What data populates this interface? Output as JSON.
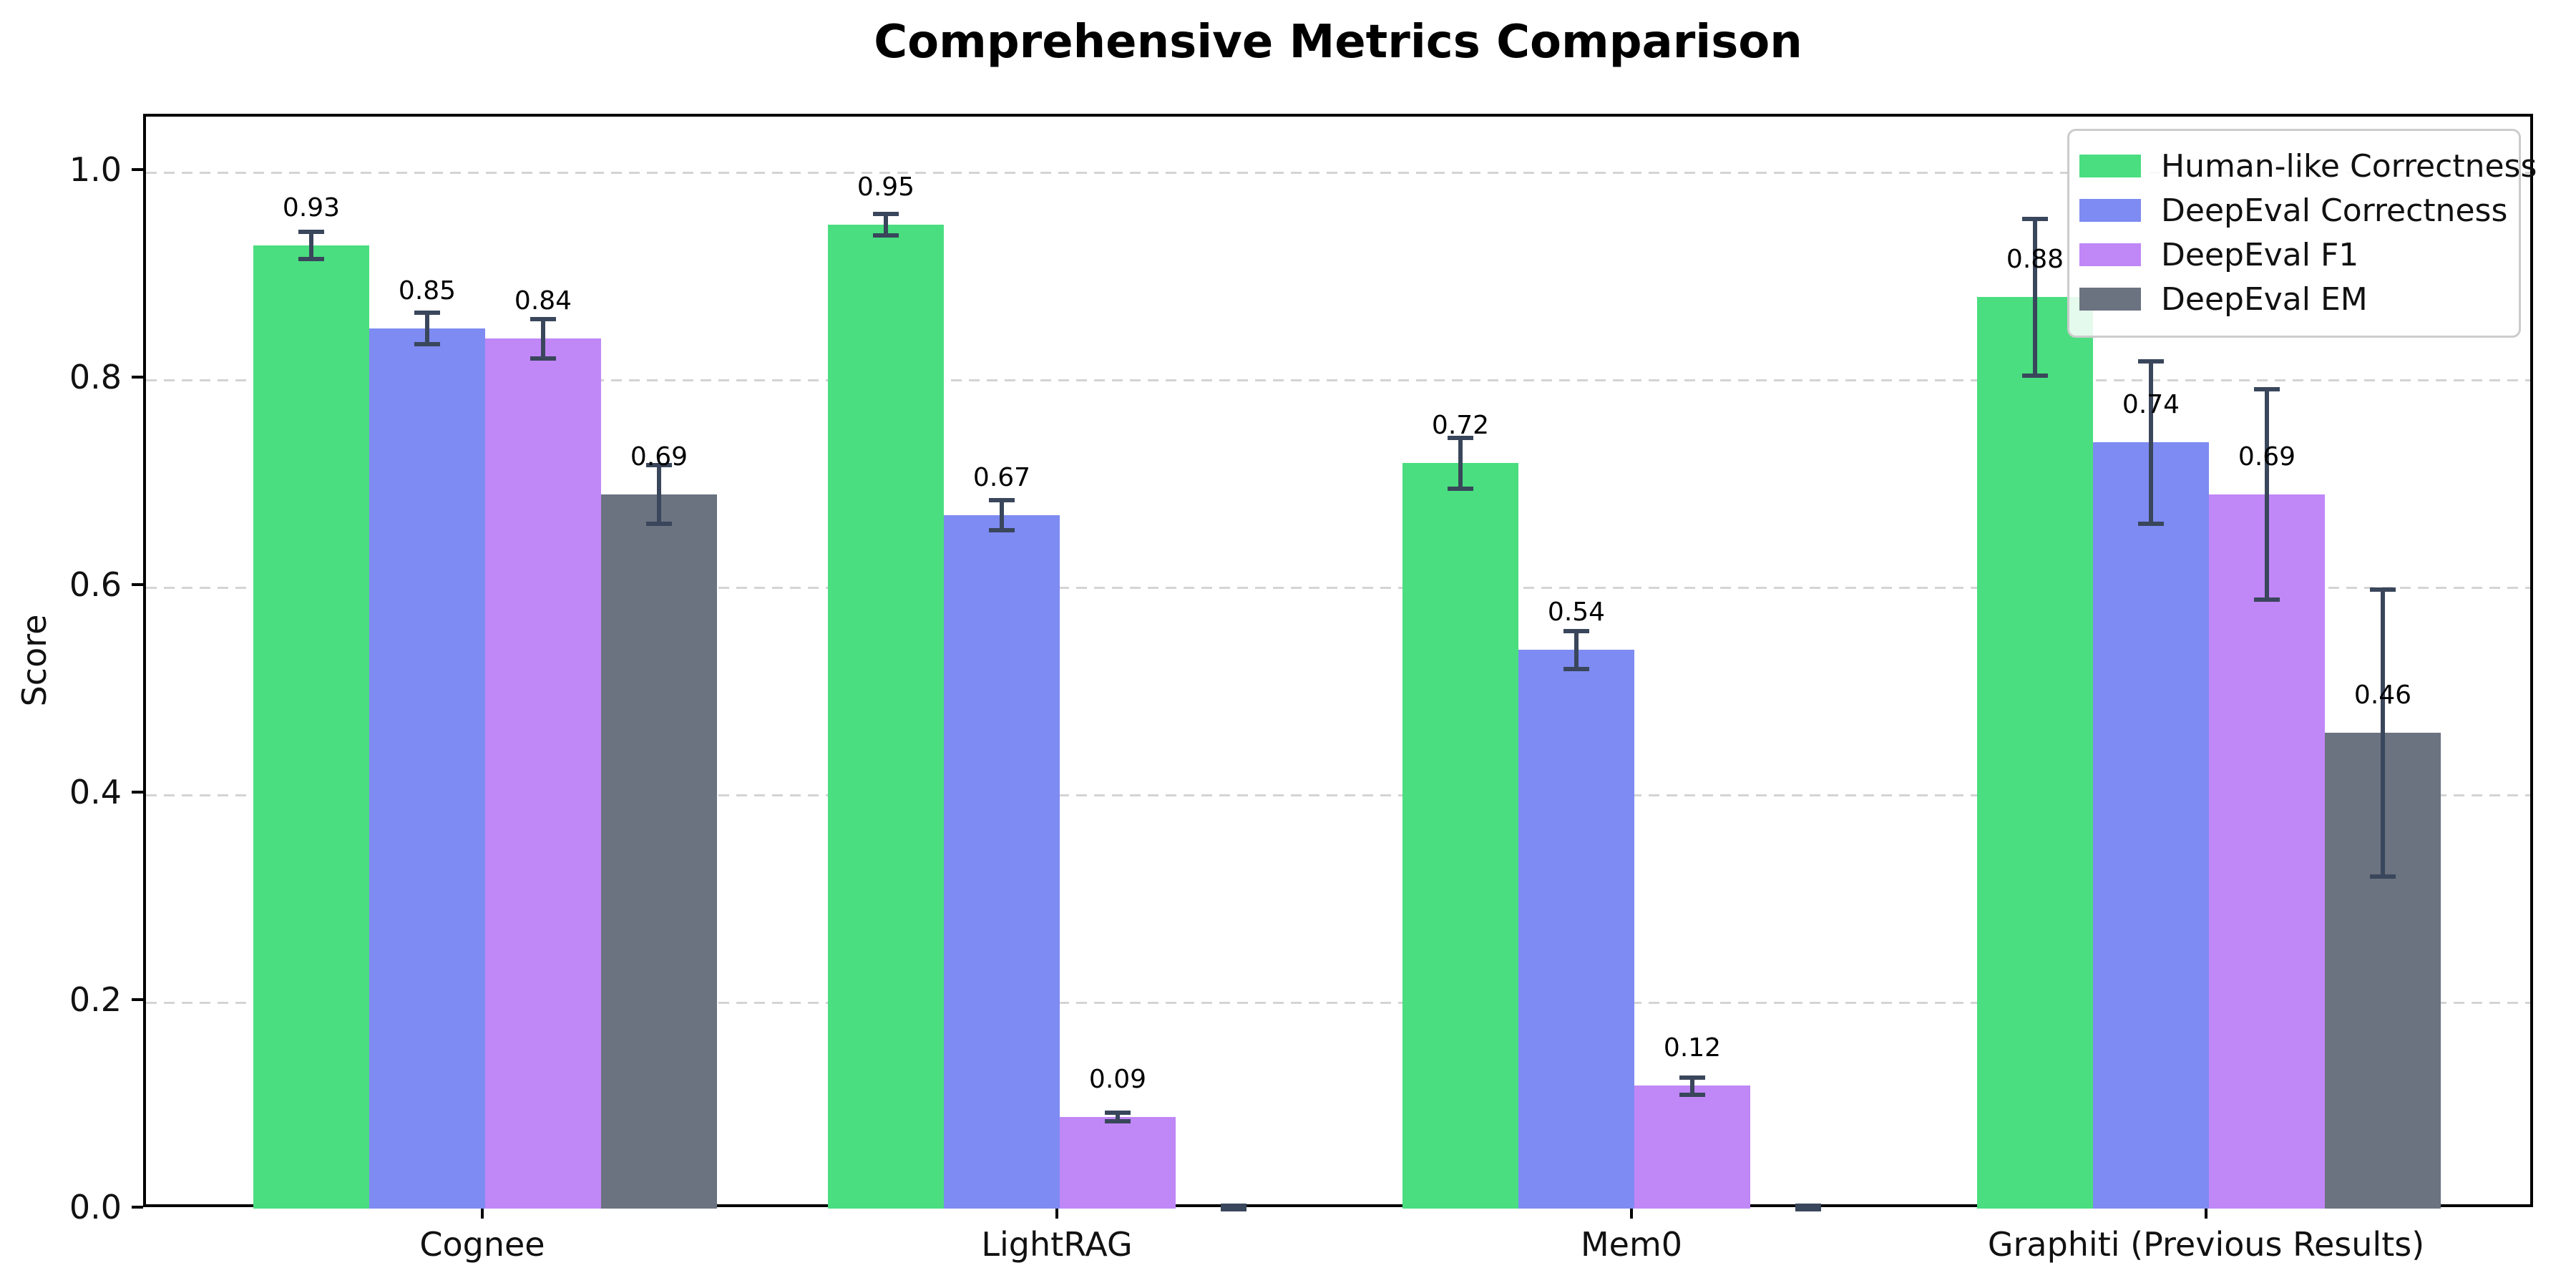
{
  "chart_data": {
    "type": "bar",
    "title": "Comprehensive Metrics Comparison",
    "ylabel": "Score",
    "xlabel": "",
    "categories": [
      "Cognee",
      "LightRAG",
      "Mem0",
      "Graphiti (Previous Results)"
    ],
    "series": [
      {
        "name": "Human-like Correctness",
        "color": "#4ade80",
        "values": [
          0.93,
          0.95,
          0.72,
          0.88
        ],
        "errors": [
          0.015,
          0.012,
          0.026,
          0.077
        ],
        "labels": [
          "0.93",
          "0.95",
          "0.72",
          "0.88"
        ]
      },
      {
        "name": "DeepEval Correctness",
        "color": "#7e8bf2",
        "values": [
          0.85,
          0.67,
          0.54,
          0.74
        ],
        "errors": [
          0.017,
          0.016,
          0.02,
          0.08
        ],
        "labels": [
          "0.85",
          "0.67",
          "0.54",
          "0.74"
        ]
      },
      {
        "name": "DeepEval F1",
        "color": "#c087f7",
        "values": [
          0.84,
          0.09,
          0.12,
          0.69
        ],
        "errors": [
          0.021,
          0.006,
          0.01,
          0.103
        ],
        "labels": [
          "0.84",
          "0.09",
          "0.12",
          "0.69"
        ]
      },
      {
        "name": "DeepEval EM",
        "color": "#6b7280",
        "values": [
          0.69,
          0.0,
          0.0,
          0.46
        ],
        "errors": [
          0.03,
          0.003,
          0.003,
          0.14
        ],
        "labels": [
          "0.69",
          "",
          "",
          "0.46"
        ]
      }
    ],
    "yticks": [
      {
        "value": 0.0,
        "label": "0.0"
      },
      {
        "value": 0.2,
        "label": "0.2"
      },
      {
        "value": 0.4,
        "label": "0.4"
      },
      {
        "value": 0.6,
        "label": "0.6"
      },
      {
        "value": 0.8,
        "label": "0.8"
      },
      {
        "value": 1.0,
        "label": "1.0"
      }
    ],
    "ylim": [
      0,
      1.054
    ],
    "grid": "horizontal-dashed",
    "legend_position": "upper-right",
    "colors": {
      "errorbar": "#39465b",
      "grid": "#d4d4d4",
      "axis": "#000000",
      "background": "#ffffff",
      "text": "#111111"
    }
  }
}
